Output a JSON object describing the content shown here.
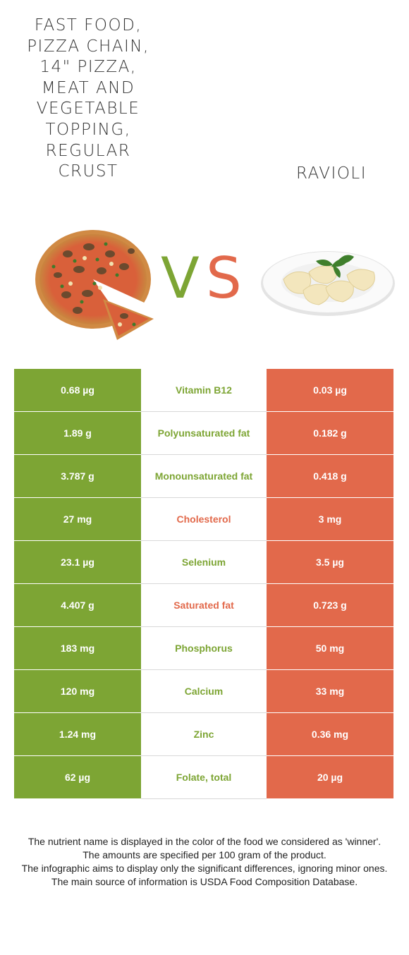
{
  "left_food": {
    "title": "Fast food, Pizza chain, 14\" pizza, meat and vegetable topping, regular crust",
    "title_lines": "Fast food,\nPizza chain,\n14\" pizza,\nmeat and\nvegetable\ntopping,\nregular\ncrust",
    "color": "#7da534"
  },
  "right_food": {
    "title": "Ravioli",
    "color": "#e2694b"
  },
  "vs": {
    "v": "V",
    "s": "S"
  },
  "rows": [
    {
      "left": "0.68 µg",
      "nutrient": "Vitamin B12",
      "right": "0.03 µg",
      "winner": "left"
    },
    {
      "left": "1.89 g",
      "nutrient": "Polyunsaturated fat",
      "right": "0.182 g",
      "winner": "left"
    },
    {
      "left": "3.787 g",
      "nutrient": "Monounsaturated fat",
      "right": "0.418 g",
      "winner": "left"
    },
    {
      "left": "27 mg",
      "nutrient": "Cholesterol",
      "right": "3 mg",
      "winner": "right"
    },
    {
      "left": "23.1 µg",
      "nutrient": "Selenium",
      "right": "3.5 µg",
      "winner": "left"
    },
    {
      "left": "4.407 g",
      "nutrient": "Saturated fat",
      "right": "0.723 g",
      "winner": "right"
    },
    {
      "left": "183 mg",
      "nutrient": "Phosphorus",
      "right": "50 mg",
      "winner": "left"
    },
    {
      "left": "120 mg",
      "nutrient": "Calcium",
      "right": "33 mg",
      "winner": "left"
    },
    {
      "left": "1.24 mg",
      "nutrient": "Zinc",
      "right": "0.36 mg",
      "winner": "left"
    },
    {
      "left": "62 µg",
      "nutrient": "Folate, total",
      "right": "20 µg",
      "winner": "left"
    }
  ],
  "footnotes": [
    "The nutrient name is displayed in the color of the food we considered as 'winner'.",
    "The amounts are specified per 100 gram of the product.",
    "The infographic aims to display only the significant differences, ignoring minor ones.",
    "The main source of information is USDA Food Composition Database."
  ]
}
